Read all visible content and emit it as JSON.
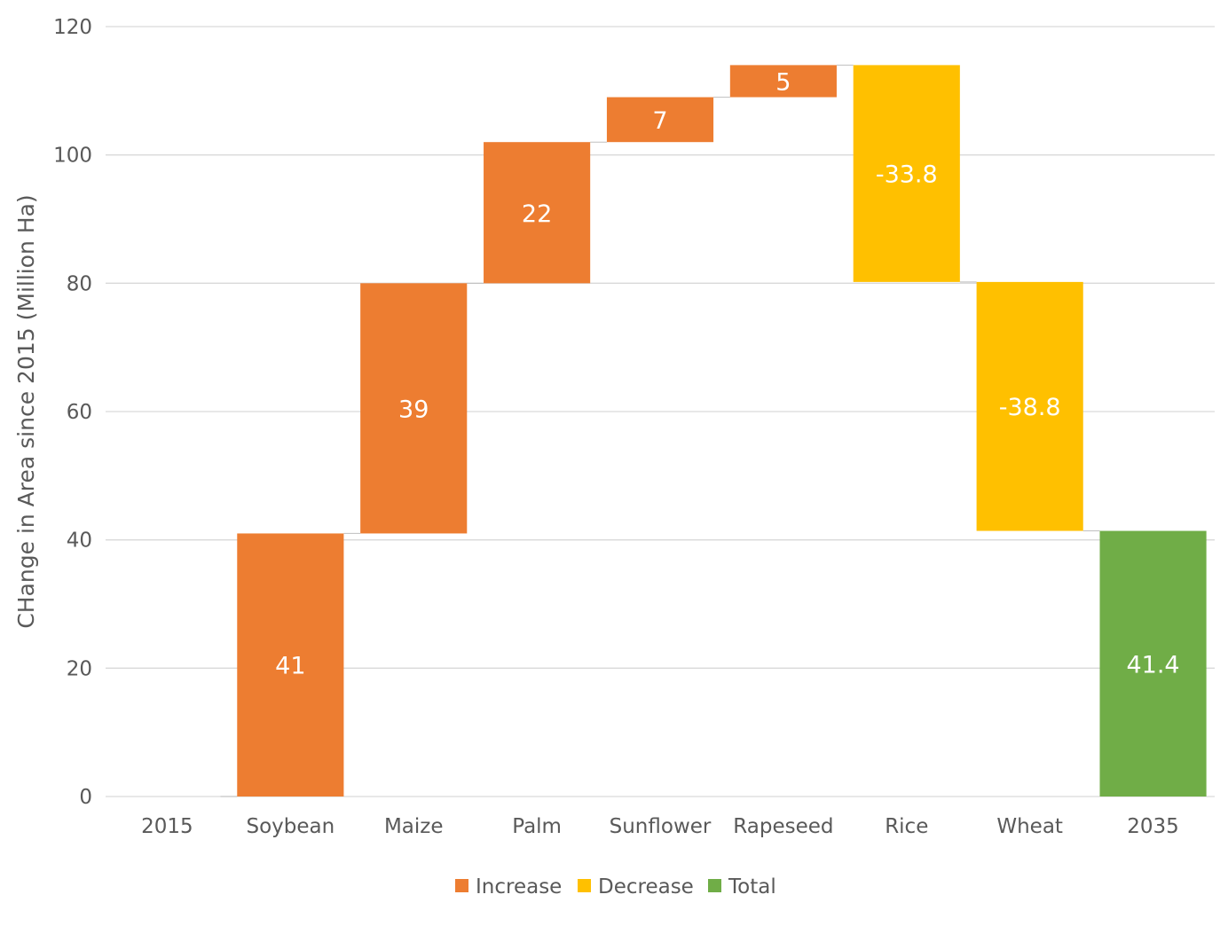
{
  "chart_data": {
    "type": "bar",
    "subtype": "waterfall",
    "title": "",
    "xlabel": "",
    "ylabel": "CHange in Area since 2015 (Million Ha)",
    "ylim": [
      0,
      120
    ],
    "yticks": [
      "0",
      "20",
      "40",
      "60",
      "80",
      "100",
      "120"
    ],
    "grid": true,
    "legend_position": "bottom",
    "categories": [
      "2015",
      "Soybean",
      "Maize",
      "Palm",
      "Sunflower",
      "Rapeseed",
      "Rice",
      "Wheat",
      "2035"
    ],
    "values": [
      0,
      41,
      39,
      22,
      7,
      5,
      -33.8,
      -38.8,
      41.4
    ],
    "data_labels": [
      "",
      "41",
      "39",
      "22",
      "7",
      "5",
      "-33.8",
      "-38.8",
      "41.4"
    ],
    "kinds": [
      "total",
      "increase",
      "increase",
      "increase",
      "increase",
      "increase",
      "decrease",
      "decrease",
      "total"
    ],
    "legend": [
      {
        "key": "increase",
        "label": "Increase"
      },
      {
        "key": "decrease",
        "label": "Decrease"
      },
      {
        "key": "total",
        "label": "Total"
      }
    ],
    "colors": {
      "increase": "#ED7D31",
      "decrease": "#FFC000",
      "total": "#70AD47",
      "gridline": "#D9D9D9",
      "connector": "#BFBFBF"
    }
  }
}
